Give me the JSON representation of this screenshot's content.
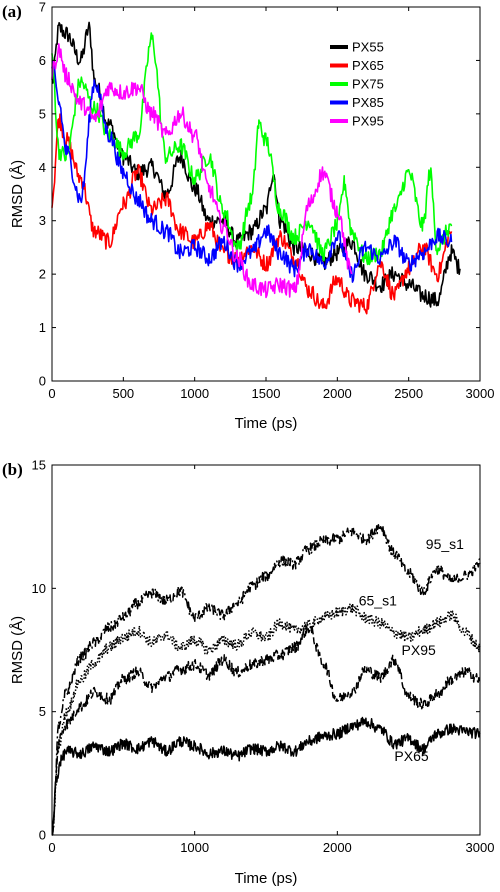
{
  "chart_data": [
    {
      "type": "line",
      "panel_label": "(a)",
      "xlabel": "Time (ps)",
      "ylabel": "RMSD (Å)",
      "xlim": [
        0,
        3000
      ],
      "ylim": [
        0,
        7
      ],
      "xticks": [
        0,
        500,
        1000,
        1500,
        2000,
        2500,
        3000
      ],
      "xtick_labels": [
        "0",
        "500",
        "1000",
        "1500",
        "2000",
        "2500",
        "3000"
      ],
      "yticks": [
        0,
        1,
        2,
        3,
        4,
        5,
        6,
        7
      ],
      "ytick_labels": [
        "0",
        "1",
        "2",
        "3",
        "4",
        "5",
        "6",
        "7"
      ],
      "grid": false,
      "legend_position": "top-right",
      "series": [
        {
          "name": "PX55",
          "color": "#000000",
          "x": [
            0,
            50,
            100,
            200,
            260,
            300,
            400,
            500,
            600,
            700,
            800,
            900,
            1000,
            1100,
            1200,
            1300,
            1400,
            1500,
            1550,
            1600,
            1700,
            1800,
            1900,
            2000,
            2100,
            2200,
            2300,
            2400,
            2500,
            2600,
            2700,
            2800,
            2860
          ],
          "y": [
            5.6,
            6.6,
            6.5,
            6.0,
            6.6,
            5.6,
            4.8,
            4.2,
            3.9,
            4.0,
            3.5,
            4.2,
            3.6,
            3.0,
            3.0,
            2.6,
            2.8,
            3.2,
            3.9,
            3.0,
            2.5,
            2.4,
            2.2,
            2.4,
            2.6,
            2.0,
            1.8,
            2.0,
            1.8,
            1.6,
            1.5,
            2.4,
            2.1
          ]
        },
        {
          "name": "PX65",
          "color": "#ff0000",
          "x": [
            0,
            50,
            100,
            200,
            300,
            400,
            500,
            600,
            700,
            800,
            900,
            1000,
            1100,
            1200,
            1300,
            1400,
            1500,
            1600,
            1700,
            1800,
            1900,
            2000,
            2100,
            2200,
            2300,
            2400,
            2500,
            2600,
            2700,
            2800
          ],
          "y": [
            3.4,
            4.9,
            4.5,
            3.8,
            2.8,
            2.6,
            3.3,
            3.9,
            3.2,
            3.4,
            2.8,
            2.6,
            2.9,
            2.4,
            2.3,
            2.5,
            2.2,
            2.7,
            2.3,
            1.7,
            1.4,
            1.9,
            1.5,
            1.4,
            2.2,
            1.6,
            2.1,
            2.5,
            2.0,
            2.8
          ]
        },
        {
          "name": "PX75",
          "color": "#00ff00",
          "x": [
            0,
            50,
            100,
            200,
            300,
            400,
            500,
            600,
            700,
            800,
            900,
            1000,
            1100,
            1200,
            1300,
            1400,
            1450,
            1500,
            1600,
            1700,
            1800,
            1900,
            2000,
            2050,
            2100,
            2200,
            2300,
            2400,
            2500,
            2600,
            2650,
            2700,
            2800
          ],
          "y": [
            6.0,
            4.3,
            4.2,
            5.6,
            5.1,
            4.6,
            4.3,
            4.6,
            6.4,
            4.2,
            4.4,
            3.8,
            4.2,
            3.2,
            2.5,
            3.4,
            4.8,
            4.5,
            3.2,
            2.7,
            3.0,
            2.4,
            2.9,
            3.7,
            2.8,
            2.3,
            2.4,
            3.2,
            3.9,
            2.9,
            3.9,
            2.5,
            2.9
          ]
        },
        {
          "name": "PX85",
          "color": "#0000ff",
          "x": [
            0,
            50,
            100,
            200,
            300,
            400,
            500,
            600,
            700,
            800,
            900,
            1000,
            1100,
            1200,
            1300,
            1400,
            1500,
            1600,
            1700,
            1800,
            1900,
            2000,
            2100,
            2200,
            2300,
            2400,
            2500,
            2600,
            2700,
            2800
          ],
          "y": [
            5.9,
            5.2,
            4.3,
            3.4,
            5.6,
            4.6,
            3.9,
            3.4,
            3.0,
            2.8,
            2.4,
            2.5,
            2.3,
            2.6,
            2.2,
            2.4,
            2.8,
            2.4,
            2.1,
            2.5,
            2.2,
            2.7,
            2.0,
            2.5,
            2.3,
            2.6,
            2.2,
            2.4,
            2.7,
            2.6
          ]
        },
        {
          "name": "PX95",
          "color": "#ff00ff",
          "x": [
            0,
            50,
            100,
            200,
            300,
            400,
            500,
            600,
            700,
            800,
            900,
            1000,
            1100,
            1200,
            1300,
            1400,
            1500,
            1600,
            1700,
            1800,
            1900,
            2000,
            2100
          ],
          "y": [
            5.8,
            6.2,
            5.7,
            5.2,
            4.9,
            5.5,
            5.4,
            5.5,
            5.0,
            4.6,
            5.0,
            4.6,
            3.6,
            2.9,
            2.3,
            1.8,
            1.7,
            1.8,
            1.7,
            3.3,
            3.9,
            3.2,
            2.0
          ]
        }
      ]
    },
    {
      "type": "line",
      "panel_label": "(b)",
      "xlabel": "Time (ps)",
      "ylabel": "RMSD (Å)",
      "xlim": [
        0,
        3000
      ],
      "ylim": [
        0,
        15
      ],
      "xticks": [
        0,
        1000,
        2000,
        3000
      ],
      "xtick_labels": [
        "0",
        "1000",
        "2000",
        "3000"
      ],
      "yticks": [
        0,
        5,
        10,
        15
      ],
      "ytick_labels": [
        "0",
        "5",
        "10",
        "15"
      ],
      "grid": false,
      "series": [
        {
          "label": "95_s1",
          "color": "#000000",
          "dash": "dashdot",
          "x": [
            0,
            50,
            100,
            200,
            300,
            400,
            500,
            600,
            700,
            800,
            900,
            1000,
            1100,
            1200,
            1300,
            1400,
            1500,
            1600,
            1700,
            1800,
            1900,
            2000,
            2100,
            2200,
            2300,
            2400,
            2500,
            2600,
            2700,
            2800,
            2900,
            3000
          ],
          "y": [
            0,
            4.5,
            5.8,
            7.2,
            7.8,
            8.4,
            8.8,
            9.4,
            9.8,
            9.5,
            9.9,
            8.8,
            9.2,
            8.9,
            9.4,
            10.1,
            10.5,
            11.1,
            11.0,
            11.6,
            11.9,
            12.0,
            12.3,
            12.0,
            12.5,
            11.4,
            10.6,
            9.9,
            10.8,
            10.3,
            10.5,
            11.0
          ]
        },
        {
          "label": "65_s1",
          "color": "#000000",
          "dash": "dotted",
          "x": [
            0,
            50,
            100,
            200,
            300,
            400,
            500,
            600,
            700,
            800,
            900,
            1000,
            1100,
            1200,
            1300,
            1400,
            1500,
            1600,
            1700,
            1800,
            1900,
            2000,
            2100,
            2200,
            2300,
            2400,
            2500,
            2600,
            2700,
            2800,
            2900,
            3000
          ],
          "y": [
            0,
            3.7,
            5.0,
            6.3,
            7.0,
            7.6,
            8.0,
            8.3,
            7.8,
            8.1,
            7.6,
            7.9,
            7.5,
            7.9,
            7.7,
            8.2,
            8.0,
            8.6,
            8.3,
            8.5,
            8.8,
            9.0,
            9.2,
            8.8,
            8.6,
            8.2,
            8.0,
            8.3,
            8.6,
            8.9,
            8.2,
            7.6
          ]
        },
        {
          "label": "PX95",
          "color": "#000000",
          "dash": "dashed",
          "x": [
            0,
            50,
            100,
            200,
            300,
            400,
            500,
            600,
            700,
            800,
            900,
            1000,
            1100,
            1200,
            1300,
            1400,
            1500,
            1600,
            1700,
            1800,
            1900,
            2000,
            2100,
            2200,
            2300,
            2400,
            2500,
            2600,
            2700,
            2800,
            2900,
            3000
          ],
          "y": [
            0,
            3.9,
            4.5,
            5.2,
            5.8,
            5.5,
            6.3,
            6.6,
            6.0,
            6.4,
            6.7,
            6.9,
            6.5,
            7.1,
            6.6,
            6.9,
            7.1,
            7.3,
            7.6,
            8.4,
            7.0,
            5.5,
            5.8,
            6.7,
            6.4,
            7.1,
            5.6,
            5.3,
            5.7,
            6.3,
            6.6,
            6.3
          ]
        },
        {
          "label": "PX65",
          "color": "#000000",
          "dash": "solid",
          "x": [
            0,
            30,
            60,
            100,
            200,
            300,
            400,
            500,
            600,
            700,
            800,
            900,
            1000,
            1100,
            1200,
            1300,
            1400,
            1500,
            1600,
            1700,
            1800,
            1900,
            2000,
            2100,
            2200,
            2300,
            2400,
            2500,
            2600,
            2700,
            2800,
            2900,
            3000
          ],
          "y": [
            0,
            2.2,
            3.0,
            3.4,
            3.3,
            3.6,
            3.4,
            3.7,
            3.5,
            3.8,
            3.4,
            3.8,
            3.6,
            3.3,
            3.4,
            3.2,
            3.5,
            3.4,
            3.6,
            3.4,
            3.8,
            4.0,
            4.1,
            4.4,
            4.6,
            4.3,
            3.7,
            3.9,
            3.5,
            4.1,
            4.3,
            4.2,
            4.1
          ]
        }
      ]
    }
  ]
}
